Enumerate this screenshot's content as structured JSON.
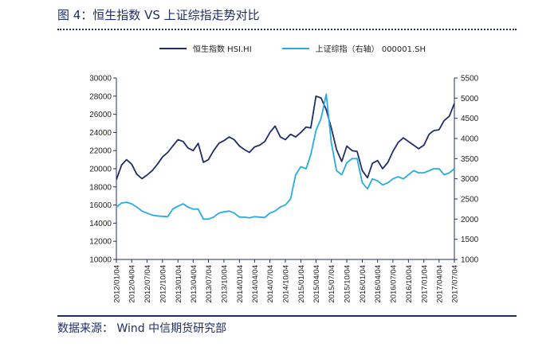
{
  "header": {
    "title": "图 4：恒生指数 VS 上证综指走势对比"
  },
  "footer": {
    "source": "数据来源：  Wind  中信期货研究部"
  },
  "chart_data": {
    "type": "line",
    "title": "图 4：恒生指数 VS 上证综指走势对比",
    "left_axis": {
      "min": 10000,
      "max": 30000,
      "ticks": [
        10000,
        12000,
        14000,
        16000,
        18000,
        20000,
        22000,
        24000,
        26000,
        28000,
        30000
      ]
    },
    "right_axis": {
      "min": 1000,
      "max": 5500,
      "ticks": [
        1000,
        1500,
        2000,
        2500,
        3000,
        3500,
        4000,
        4500,
        5000,
        5500
      ]
    },
    "x_tick_labels": [
      "2012/01/04",
      "2012/04/04",
      "2012/07/04",
      "2012/10/04",
      "2013/01/04",
      "2013/04/04",
      "2013/07/04",
      "2013/10/04",
      "2014/01/04",
      "2014/04/04",
      "2014/07/04",
      "2014/10/04",
      "2015/01/04",
      "2015/04/04",
      "2015/07/04",
      "2015/10/04",
      "2016/01/04",
      "2016/04/04",
      "2016/07/04",
      "2016/10/04",
      "2017/01/04",
      "2017/04/04",
      "2017/07/04"
    ],
    "grid": false,
    "legend_position": "top",
    "colors": {
      "hsi": "#1f2d6b",
      "sh": "#29abe2"
    },
    "series": [
      {
        "name": "恒生指数 HSI.HI",
        "axis": "left",
        "x": [
          "2012/01/04",
          "2012/02/04",
          "2012/03/04",
          "2012/04/04",
          "2012/05/04",
          "2012/06/04",
          "2012/07/04",
          "2012/08/04",
          "2012/09/04",
          "2012/10/04",
          "2012/11/04",
          "2012/12/04",
          "2013/01/04",
          "2013/02/04",
          "2013/03/04",
          "2013/04/04",
          "2013/05/04",
          "2013/06/04",
          "2013/07/04",
          "2013/08/04",
          "2013/09/04",
          "2013/10/04",
          "2013/11/04",
          "2013/12/04",
          "2014/01/04",
          "2014/02/04",
          "2014/03/04",
          "2014/04/04",
          "2014/05/04",
          "2014/06/04",
          "2014/07/04",
          "2014/08/04",
          "2014/09/04",
          "2014/10/04",
          "2014/11/04",
          "2014/12/04",
          "2015/01/04",
          "2015/02/04",
          "2015/03/04",
          "2015/04/04",
          "2015/05/04",
          "2015/06/04",
          "2015/07/04",
          "2015/08/04",
          "2015/09/04",
          "2015/10/04",
          "2015/11/04",
          "2015/12/04",
          "2016/01/04",
          "2016/02/04",
          "2016/03/04",
          "2016/04/04",
          "2016/05/04",
          "2016/06/04",
          "2016/07/04",
          "2016/08/04",
          "2016/09/04",
          "2016/10/04",
          "2016/11/04",
          "2016/12/04",
          "2017/01/04",
          "2017/02/04",
          "2017/03/04",
          "2017/04/04",
          "2017/05/04",
          "2017/06/04",
          "2017/07/04"
        ],
        "values": [
          18800,
          20400,
          21000,
          20500,
          19400,
          18900,
          19300,
          19800,
          20500,
          21300,
          21800,
          22500,
          23200,
          23000,
          22300,
          22000,
          22800,
          20700,
          21000,
          22000,
          22800,
          23100,
          23500,
          23200,
          22500,
          22100,
          21800,
          22400,
          22600,
          23000,
          24000,
          24700,
          23500,
          23200,
          23800,
          23500,
          24000,
          24600,
          24500,
          28000,
          27800,
          26500,
          24500,
          22100,
          20800,
          22500,
          22000,
          21900,
          19800,
          19000,
          20600,
          20900,
          20000,
          20700,
          21900,
          22900,
          23400,
          23000,
          22600,
          22200,
          22600,
          23800,
          24200,
          24300,
          25300,
          25800,
          27200
        ]
      },
      {
        "name": "上证综指（右轴） 000001.SH",
        "axis": "right",
        "x": [
          "2012/01/04",
          "2012/02/04",
          "2012/03/04",
          "2012/04/04",
          "2012/05/04",
          "2012/06/04",
          "2012/07/04",
          "2012/08/04",
          "2012/09/04",
          "2012/10/04",
          "2012/11/04",
          "2012/12/04",
          "2013/01/04",
          "2013/02/04",
          "2013/03/04",
          "2013/04/04",
          "2013/05/04",
          "2013/06/04",
          "2013/07/04",
          "2013/08/04",
          "2013/09/04",
          "2013/10/04",
          "2013/11/04",
          "2013/12/04",
          "2014/01/04",
          "2014/02/04",
          "2014/03/04",
          "2014/04/04",
          "2014/05/04",
          "2014/06/04",
          "2014/07/04",
          "2014/08/04",
          "2014/09/04",
          "2014/10/04",
          "2014/11/04",
          "2014/12/04",
          "2015/01/04",
          "2015/02/04",
          "2015/03/04",
          "2015/04/04",
          "2015/05/04",
          "2015/06/04",
          "2015/07/04",
          "2015/08/04",
          "2015/09/04",
          "2015/10/04",
          "2015/11/04",
          "2015/12/04",
          "2016/01/04",
          "2016/02/04",
          "2016/03/04",
          "2016/04/04",
          "2016/05/04",
          "2016/06/04",
          "2016/07/04",
          "2016/08/04",
          "2016/09/04",
          "2016/10/04",
          "2016/11/04",
          "2016/12/04",
          "2017/01/04",
          "2017/02/04",
          "2017/03/04",
          "2017/04/04",
          "2017/05/04",
          "2017/06/04",
          "2017/07/04"
        ],
        "values": [
          2300,
          2400,
          2420,
          2380,
          2300,
          2200,
          2150,
          2100,
          2080,
          2070,
          2060,
          2250,
          2320,
          2380,
          2300,
          2250,
          2250,
          2000,
          2000,
          2050,
          2150,
          2180,
          2200,
          2150,
          2050,
          2050,
          2030,
          2060,
          2050,
          2040,
          2150,
          2200,
          2300,
          2350,
          2500,
          3100,
          3300,
          3250,
          3600,
          4200,
          4500,
          5100,
          3900,
          3200,
          3100,
          3400,
          3500,
          3500,
          2900,
          2750,
          3000,
          2950,
          2850,
          2900,
          3000,
          3050,
          3000,
          3100,
          3200,
          3150,
          3150,
          3200,
          3250,
          3250,
          3100,
          3150,
          3250
        ]
      }
    ]
  }
}
